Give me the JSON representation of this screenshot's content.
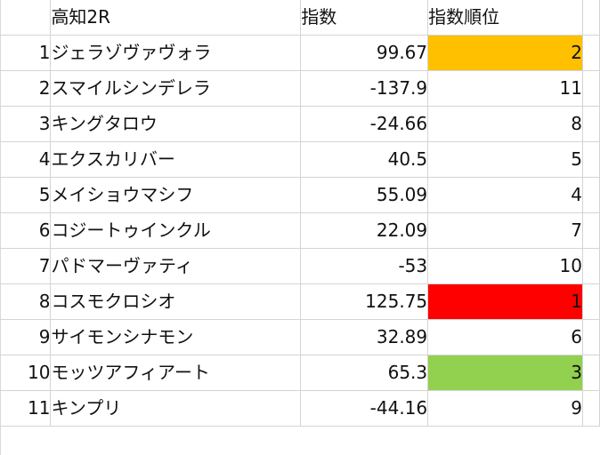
{
  "header": {
    "race": "高知2R",
    "index_label": "指数",
    "rank_label": "指数順位"
  },
  "colors": {
    "gold": "#FFC000",
    "red": "#FF0000",
    "green": "#92D050"
  },
  "rows": [
    {
      "no": "1",
      "name": "ジェラゾヴァヴォラ",
      "index": "99.67",
      "rank": "2",
      "highlight": "gold"
    },
    {
      "no": "2",
      "name": "スマイルシンデレラ",
      "index": "-137.9",
      "rank": "11",
      "highlight": ""
    },
    {
      "no": "3",
      "name": "キングタロウ",
      "index": "-24.66",
      "rank": "8",
      "highlight": ""
    },
    {
      "no": "4",
      "name": "エクスカリバー",
      "index": "40.5",
      "rank": "5",
      "highlight": ""
    },
    {
      "no": "5",
      "name": "メイショウマシフ",
      "index": "55.09",
      "rank": "4",
      "highlight": ""
    },
    {
      "no": "6",
      "name": "コジートゥインクル",
      "index": "22.09",
      "rank": "7",
      "highlight": ""
    },
    {
      "no": "7",
      "name": "パドマーヴァティ",
      "index": "-53",
      "rank": "10",
      "highlight": ""
    },
    {
      "no": "8",
      "name": "コスモクロシオ",
      "index": "125.75",
      "rank": "1",
      "highlight": "red"
    },
    {
      "no": "9",
      "name": "サイモンシナモン",
      "index": "32.89",
      "rank": "6",
      "highlight": ""
    },
    {
      "no": "10",
      "name": "モッツアフィアート",
      "index": "65.3",
      "rank": "3",
      "highlight": "green"
    },
    {
      "no": "11",
      "name": "キンプリ",
      "index": "-44.16",
      "rank": "9",
      "highlight": ""
    }
  ]
}
